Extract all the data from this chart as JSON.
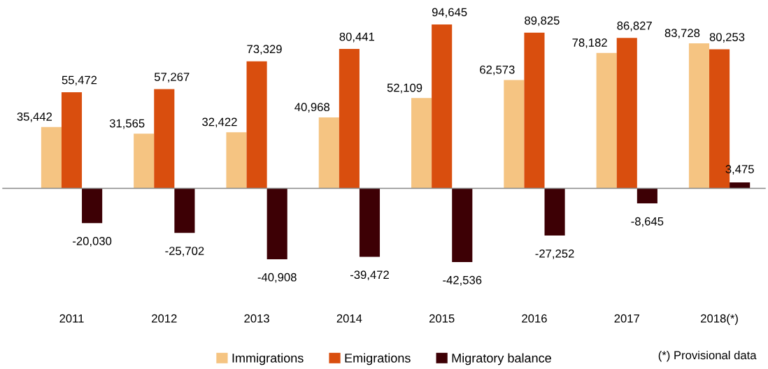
{
  "chart_data": {
    "type": "bar",
    "categories": [
      "2011",
      "2012",
      "2013",
      "2014",
      "2015",
      "2016",
      "2017",
      "2018(*)"
    ],
    "series": [
      {
        "name": "Immigrations",
        "color": "#f5c482",
        "values": [
          35442,
          31565,
          32422,
          40968,
          52109,
          62573,
          78182,
          83728
        ],
        "value_labels": [
          "35,442",
          "31,565",
          "32,422",
          "40,968",
          "52,109",
          "62,573",
          "78,182",
          "83,728"
        ]
      },
      {
        "name": "Emigrations",
        "color": "#d94e0e",
        "values": [
          55472,
          57267,
          73329,
          80441,
          94645,
          89825,
          86827,
          80253
        ],
        "value_labels": [
          "55,472",
          "57,267",
          "73,329",
          "80,441",
          "94,645",
          "89,825",
          "86,827",
          "80,253"
        ]
      },
      {
        "name": "Migratory balance",
        "color": "#3d0005",
        "values": [
          -20030,
          -25702,
          -40908,
          -39472,
          -42536,
          -27252,
          -8645,
          3475
        ],
        "value_labels": [
          "-20,030",
          "-25,702",
          "-40,908",
          "-39,472",
          "-42,536",
          "-27,252",
          "-8,645",
          "3,475"
        ]
      }
    ],
    "legend": "bottom",
    "grid": false,
    "annotations": [
      "(*) Provisional data"
    ]
  }
}
